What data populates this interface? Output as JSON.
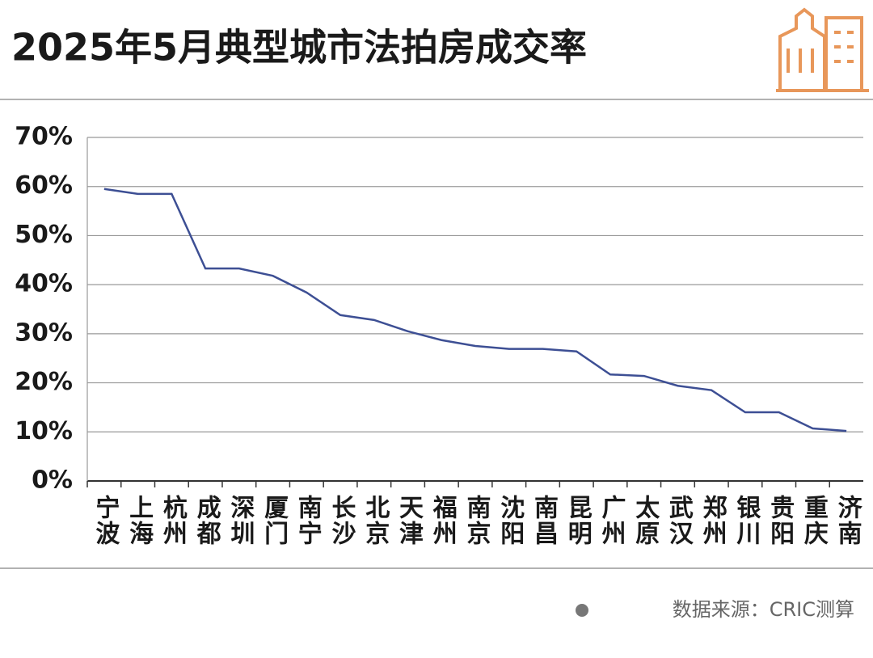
{
  "chart_data": {
    "type": "line",
    "title": "2025年5月典型城市法拍房成交率",
    "categories": [
      "宁波",
      "上海",
      "杭州",
      "成都",
      "深圳",
      "厦门",
      "南宁",
      "长沙",
      "北京",
      "天津",
      "福州",
      "南京",
      "沈阳",
      "南昌",
      "昆明",
      "广州",
      "太原",
      "武汉",
      "郑州",
      "银川",
      "贵阳",
      "重庆",
      "济南"
    ],
    "series": [
      {
        "name": "成交率",
        "color": "#3d4f94",
        "values": [
          59.5,
          58.5,
          58.5,
          43.3,
          43.3,
          41.8,
          38.4,
          33.8,
          32.8,
          30.5,
          28.7,
          27.5,
          26.9,
          26.9,
          26.4,
          21.7,
          21.4,
          19.4,
          18.5,
          14.0,
          14.0,
          10.7,
          10.2
        ]
      }
    ],
    "ylim": [
      0,
      70
    ],
    "yticks": [
      {
        "value": 0,
        "label": "0%"
      },
      {
        "value": 10,
        "label": "10%"
      },
      {
        "value": 20,
        "label": "20%"
      },
      {
        "value": 30,
        "label": "30%"
      },
      {
        "value": 40,
        "label": "40%"
      },
      {
        "value": 50,
        "label": "50%"
      },
      {
        "value": 60,
        "label": "60%"
      },
      {
        "value": 70,
        "label": "70%"
      }
    ],
    "grid": true,
    "source": "数据来源：CRIC测算"
  }
}
